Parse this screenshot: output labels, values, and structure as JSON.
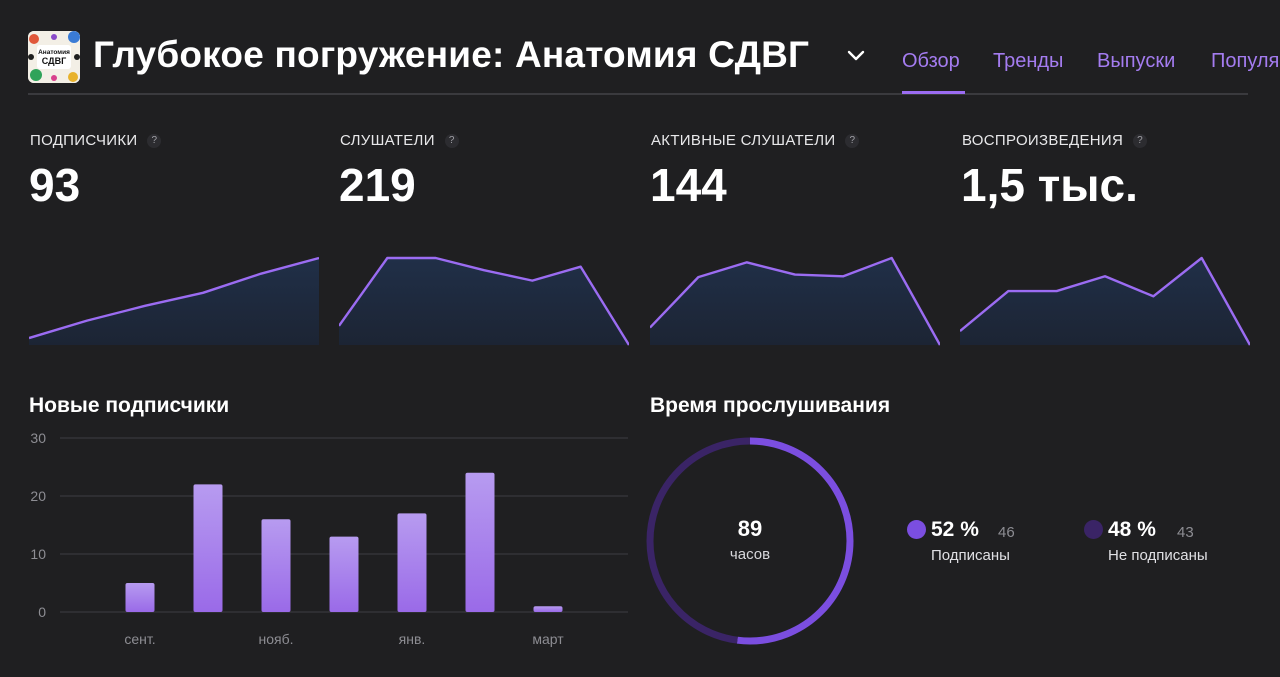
{
  "header": {
    "cover_text_line1": "Анатомия",
    "cover_text_line2": "СДВГ",
    "title": "Глубокое погружение: Анатомия СДВГ",
    "tabs": [
      {
        "label": "Обзор",
        "active": true
      },
      {
        "label": "Тренды",
        "active": false
      },
      {
        "label": "Выпуски",
        "active": false
      },
      {
        "label": "Популя",
        "active": false
      }
    ]
  },
  "stats": [
    {
      "label": "ПОДПИСЧИКИ",
      "value": "93",
      "trend": [
        0.08,
        0.28,
        0.45,
        0.6,
        0.82,
        1.0
      ]
    },
    {
      "label": "СЛУШАТЕЛИ",
      "value": "219",
      "trend": [
        0.22,
        1.0,
        1.0,
        0.86,
        0.74,
        0.9,
        0.0
      ]
    },
    {
      "label": "АКТИВНЫЕ СЛУШАТЕЛИ",
      "value": "144",
      "trend": [
        0.2,
        0.78,
        0.95,
        0.81,
        0.79,
        1.0,
        0.0
      ]
    },
    {
      "label": "ВОСПРОИЗВЕДЕНИЯ",
      "value": "1,5 тыс.",
      "trend": [
        0.16,
        0.62,
        0.62,
        0.79,
        0.56,
        1.0,
        0.0
      ]
    }
  ],
  "new_followers": {
    "title": "Новые подписчики"
  },
  "listening_time": {
    "title": "Время прослушивания",
    "total_value": "89",
    "total_unit": "часов",
    "segments": [
      {
        "percent": "52 %",
        "count": "46",
        "label": "Подписаны",
        "color": "#7b4ee0",
        "fraction": 0.52
      },
      {
        "percent": "48 %",
        "count": "43",
        "label": "Не подписаны",
        "color": "#3a2466",
        "fraction": 0.48
      }
    ]
  },
  "chart_data": {
    "type": "bar",
    "title": "Новые подписчики",
    "categories": [
      "сент.",
      "",
      "нояб.",
      "",
      "янв.",
      "",
      "март"
    ],
    "values": [
      5,
      22,
      16,
      13,
      17,
      24,
      1
    ],
    "ylim": [
      0,
      30
    ],
    "yticks": [
      "0",
      "10",
      "20",
      "30"
    ],
    "grid": true,
    "bar_color": "#a57de9"
  },
  "colors": {
    "accent": "#9b6cf2",
    "line": "#9b6cf2",
    "area": "#1e2a3d"
  }
}
